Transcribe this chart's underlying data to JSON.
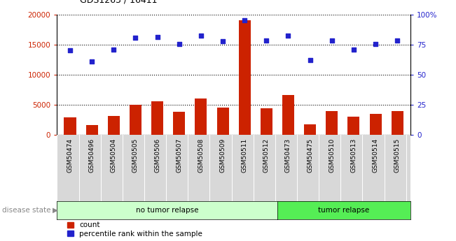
{
  "title": "GDS1263 / 16411",
  "samples": [
    "GSM50474",
    "GSM50496",
    "GSM50504",
    "GSM50505",
    "GSM50506",
    "GSM50507",
    "GSM50508",
    "GSM50509",
    "GSM50511",
    "GSM50512",
    "GSM50473",
    "GSM50475",
    "GSM50510",
    "GSM50513",
    "GSM50514",
    "GSM50515"
  ],
  "counts": [
    2900,
    1700,
    3200,
    5050,
    5600,
    3900,
    6100,
    4600,
    19000,
    4400,
    6600,
    1800,
    4000,
    3000,
    3500,
    4000
  ],
  "percentiles": [
    70,
    61,
    71,
    80.5,
    81.5,
    75.5,
    82.5,
    78,
    95,
    78.5,
    82.5,
    62,
    78.5,
    71,
    75.5,
    78.5
  ],
  "no_tumor_count": 10,
  "tumor_count": 6,
  "bar_color": "#cc2200",
  "dot_color": "#2222cc",
  "left_axis_color": "#cc2200",
  "right_axis_color": "#2222cc",
  "ylim_left": [
    0,
    20000
  ],
  "ylim_right": [
    0,
    100
  ],
  "yticks_left": [
    0,
    5000,
    10000,
    15000,
    20000
  ],
  "ytick_labels_left": [
    "0",
    "5000",
    "10000",
    "15000",
    "20000"
  ],
  "yticks_right": [
    0,
    25,
    50,
    75,
    100
  ],
  "ytick_labels_right": [
    "0",
    "25",
    "50",
    "75",
    "100%"
  ],
  "bg_color_plot": "#ffffff",
  "bg_color_no_tumor": "#ccffcc",
  "bg_color_tumor": "#55ee55",
  "bar_width": 0.55,
  "no_tumor_label": "no tumor relapse",
  "tumor_label": "tumor relapse",
  "disease_state_label": "disease state",
  "legend_count": "count",
  "legend_pct": "percentile rank within the sample"
}
